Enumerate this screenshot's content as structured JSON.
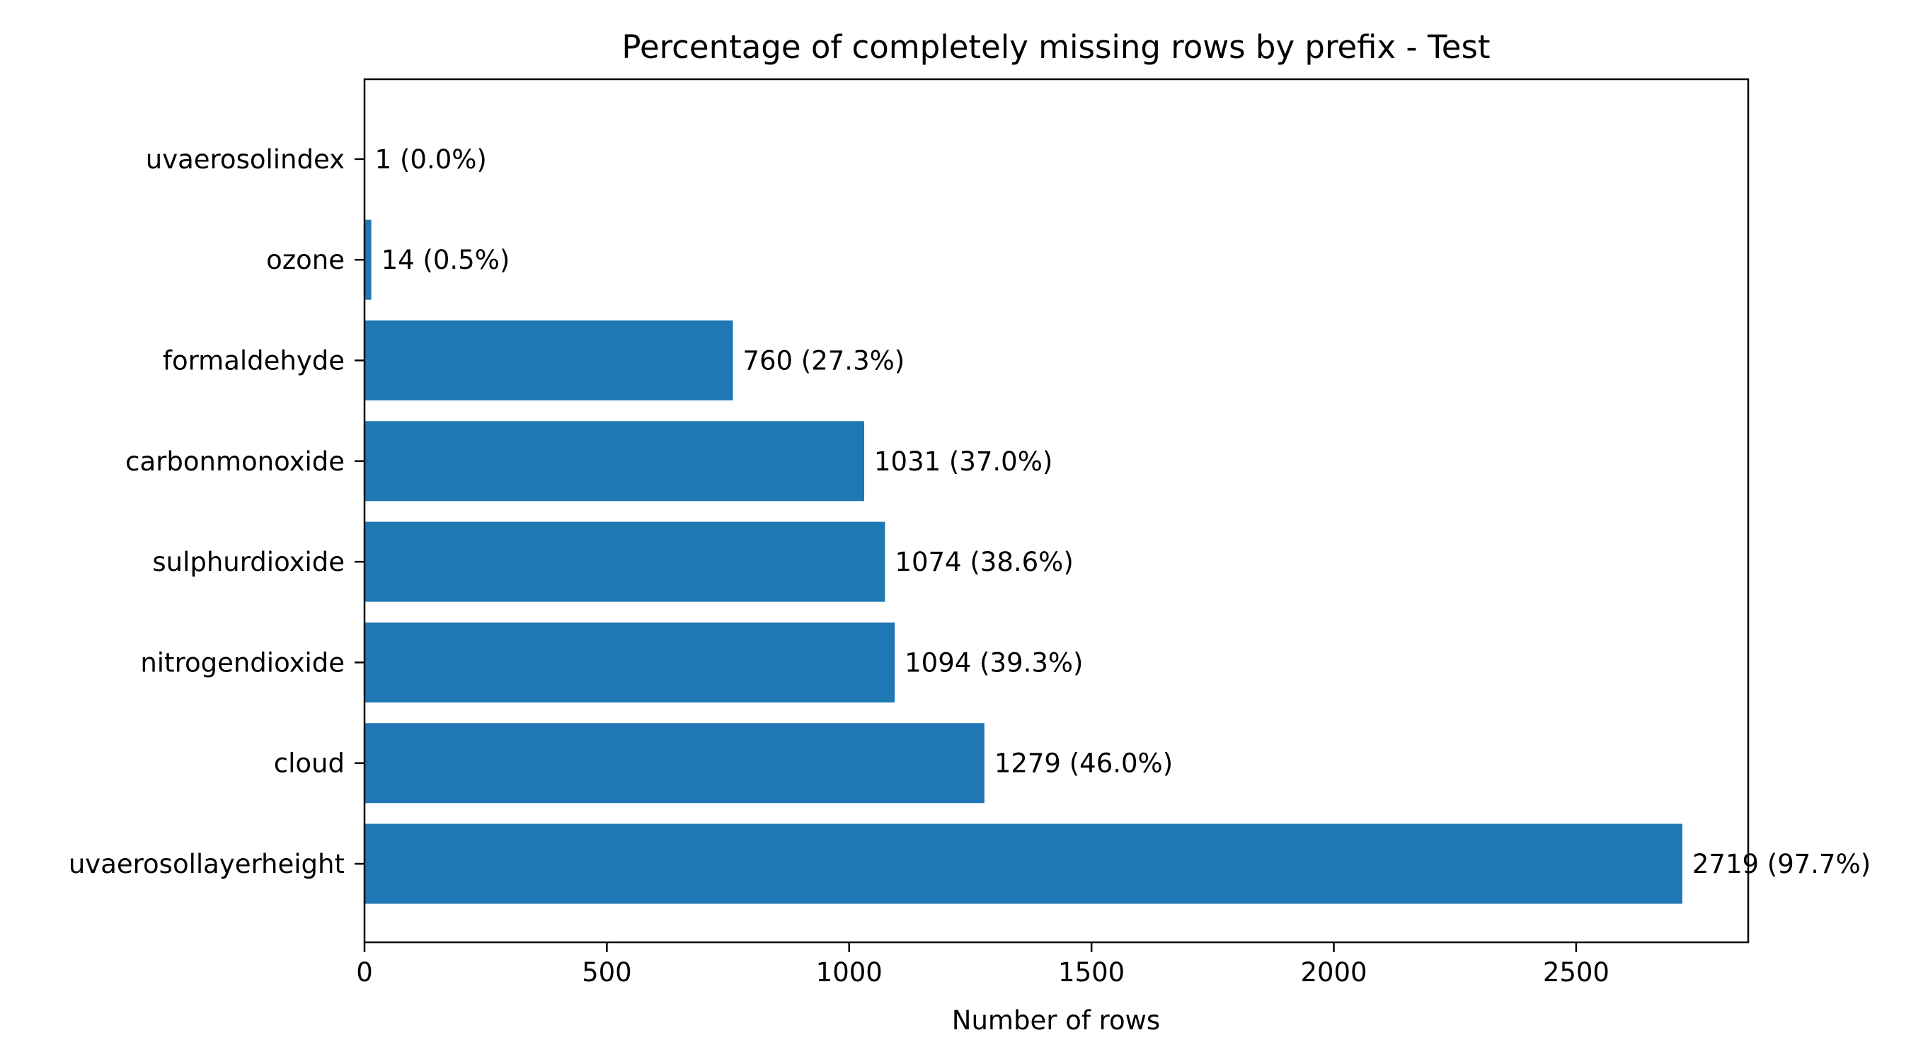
{
  "chart_data": {
    "type": "bar",
    "orientation": "horizontal",
    "title": "Percentage of completely missing rows by prefix - Test",
    "xlabel": "Number of rows",
    "ylabel": "",
    "xlim": [
      0,
      2855
    ],
    "xticks": [
      0,
      500,
      1000,
      1500,
      2000,
      2500
    ],
    "grid": false,
    "bar_color": "#1f77b4",
    "categories": [
      "uvaerosollayerheight",
      "cloud",
      "nitrogendioxide",
      "sulphurdioxide",
      "carbonmonoxide",
      "formaldehyde",
      "ozone",
      "uvaerosolindex"
    ],
    "values": [
      2719,
      1279,
      1094,
      1074,
      1031,
      760,
      14,
      1
    ],
    "data_labels": [
      "2719 (97.7%)",
      "1279 (46.0%)",
      "1094 (39.3%)",
      "1074 (38.6%)",
      "1031 (37.0%)",
      "760 (27.3%)",
      "14 (0.5%)",
      "1 (0.0%)"
    ]
  }
}
